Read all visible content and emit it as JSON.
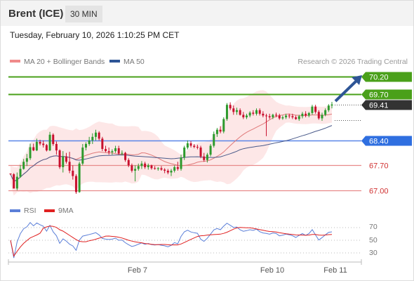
{
  "header": {
    "instrument": "Brent (ICE)",
    "timeframe": "30 MIN"
  },
  "datetime": "Tuesday, February 10, 2026 1:10:25 PM CET",
  "legend": {
    "bollinger": {
      "label": "MA 20 + Bollinger Bands",
      "color": "#f08a8a"
    },
    "ma50": {
      "label": "MA 50",
      "color": "#2e5596"
    },
    "copyright": "Research © 2026 Trading Central"
  },
  "price_levels": [
    {
      "value": "70.20",
      "kind": "target",
      "bg": "#4aa01a",
      "line": "#4aa01a"
    },
    {
      "value": "69.70",
      "kind": "resistance",
      "bg": "#4aa01a",
      "line": "#4aa01a"
    },
    {
      "value": "69.41",
      "kind": "last",
      "bg": "#333333",
      "line": "dotted"
    },
    {
      "value": "68.40",
      "kind": "pivot",
      "bg": "#2f6fe0",
      "line": "#5a86e8"
    },
    {
      "value": "67.70",
      "kind": "support",
      "bg": "none",
      "line": "#e88a8a"
    },
    {
      "value": "67.00",
      "kind": "support",
      "bg": "none",
      "line": "#e88a8a"
    }
  ],
  "rsi_legend": {
    "rsi": {
      "label": "RSI",
      "color": "#5b7fd8"
    },
    "ma": {
      "label": "9MA",
      "color": "#e02020"
    }
  },
  "rsi_levels": [
    "70",
    "50",
    "30"
  ],
  "x_labels": [
    "Feb 7",
    "Feb 10",
    "Feb 11"
  ],
  "chart_data": {
    "type": "candlestick",
    "title": "Brent (ICE) 30 MIN",
    "ylim": [
      66.8,
      70.45
    ],
    "colors": {
      "up": "#2d9a2d",
      "down": "#c8102e",
      "bands": "#fde3e3"
    },
    "candles": [
      [
        67.47,
        67.47,
        67.43,
        67.45
      ],
      [
        67.45,
        67.48,
        67.05,
        67.05
      ],
      [
        67.05,
        67.5,
        67.0,
        67.38
      ],
      [
        67.38,
        67.71,
        67.35,
        67.6
      ],
      [
        67.6,
        67.88,
        67.58,
        67.8
      ],
      [
        67.8,
        68.02,
        67.68,
        67.9
      ],
      [
        67.9,
        68.31,
        67.85,
        68.21
      ],
      [
        68.21,
        68.31,
        68.1,
        68.12
      ],
      [
        68.12,
        68.45,
        68.1,
        68.36
      ],
      [
        68.36,
        68.42,
        68.26,
        68.31
      ],
      [
        68.31,
        68.4,
        68.2,
        68.27
      ],
      [
        68.27,
        68.3,
        68.09,
        68.12
      ],
      [
        68.12,
        68.64,
        68.1,
        68.56
      ],
      [
        68.56,
        68.6,
        68.25,
        68.3
      ],
      [
        68.3,
        68.37,
        68.0,
        68.12
      ],
      [
        68.12,
        68.15,
        67.6,
        67.65
      ],
      [
        67.65,
        68.1,
        67.5,
        67.95
      ],
      [
        67.95,
        68.05,
        67.75,
        67.8
      ],
      [
        67.8,
        68.08,
        67.48,
        67.55
      ],
      [
        67.55,
        67.7,
        67.3,
        67.4
      ],
      [
        67.4,
        67.45,
        66.9,
        66.95
      ],
      [
        66.95,
        67.8,
        66.93,
        67.75
      ],
      [
        67.75,
        68.3,
        67.7,
        68.2
      ],
      [
        68.2,
        68.35,
        68.12,
        68.3
      ],
      [
        68.3,
        68.5,
        68.25,
        68.4
      ],
      [
        68.4,
        68.6,
        68.3,
        68.5
      ],
      [
        68.5,
        68.7,
        68.4,
        68.62
      ],
      [
        68.62,
        68.66,
        68.4,
        68.45
      ],
      [
        68.45,
        68.5,
        68.1,
        68.16
      ],
      [
        68.16,
        68.25,
        68.07,
        68.1
      ],
      [
        68.1,
        68.2,
        68.0,
        68.07
      ],
      [
        68.07,
        68.15,
        68.0,
        68.1
      ],
      [
        68.1,
        68.25,
        68.05,
        68.18
      ],
      [
        68.18,
        68.25,
        68.0,
        68.03
      ],
      [
        68.03,
        68.12,
        67.98,
        68.05
      ],
      [
        68.05,
        68.08,
        67.8,
        67.85
      ],
      [
        67.85,
        67.9,
        67.65,
        67.7
      ],
      [
        67.7,
        67.75,
        67.5,
        67.55
      ],
      [
        67.55,
        67.7,
        67.25,
        67.6
      ],
      [
        67.6,
        67.75,
        67.55,
        67.68
      ],
      [
        67.68,
        67.82,
        67.6,
        67.75
      ],
      [
        67.75,
        67.8,
        67.6,
        67.65
      ],
      [
        67.65,
        67.75,
        67.58,
        67.7
      ],
      [
        67.7,
        67.72,
        67.58,
        67.62
      ],
      [
        67.62,
        67.68,
        67.58,
        67.6
      ],
      [
        67.6,
        67.65,
        67.55,
        67.62
      ],
      [
        67.62,
        67.68,
        67.55,
        67.58
      ],
      [
        67.58,
        67.62,
        67.48,
        67.55
      ],
      [
        67.55,
        67.6,
        67.45,
        67.5
      ],
      [
        67.5,
        67.6,
        67.4,
        67.55
      ],
      [
        67.55,
        67.7,
        67.5,
        67.65
      ],
      [
        67.65,
        67.8,
        67.55,
        67.6
      ],
      [
        67.6,
        68.0,
        67.55,
        67.92
      ],
      [
        67.92,
        68.25,
        67.85,
        68.2
      ],
      [
        68.2,
        68.4,
        68.15,
        68.32
      ],
      [
        68.32,
        68.38,
        68.2,
        68.25
      ],
      [
        68.25,
        68.3,
        68.18,
        68.22
      ],
      [
        68.22,
        68.28,
        68.15,
        68.2
      ],
      [
        68.2,
        68.25,
        67.9,
        67.95
      ],
      [
        67.95,
        68.05,
        67.8,
        67.85
      ],
      [
        67.85,
        68.05,
        67.78,
        68.0
      ],
      [
        68.0,
        68.3,
        67.95,
        68.25
      ],
      [
        68.25,
        68.65,
        68.2,
        68.58
      ],
      [
        68.58,
        68.75,
        68.5,
        68.7
      ],
      [
        68.7,
        68.8,
        68.6,
        68.65
      ],
      [
        68.65,
        69.05,
        68.6,
        69.0
      ],
      [
        69.0,
        69.45,
        68.95,
        69.4
      ],
      [
        69.4,
        69.47,
        69.25,
        69.3
      ],
      [
        69.3,
        69.38,
        69.12,
        69.2
      ],
      [
        69.2,
        69.32,
        69.12,
        69.25
      ],
      [
        69.25,
        69.3,
        69.1,
        69.12
      ],
      [
        69.12,
        69.2,
        69.0,
        69.05
      ],
      [
        69.05,
        69.15,
        69.0,
        69.1
      ],
      [
        69.1,
        69.22,
        69.05,
        69.18
      ],
      [
        69.18,
        69.25,
        69.1,
        69.15
      ],
      [
        69.15,
        69.3,
        69.1,
        69.25
      ],
      [
        69.25,
        69.3,
        69.1,
        69.15
      ],
      [
        69.15,
        69.22,
        69.05,
        69.1
      ],
      [
        69.1,
        69.15,
        68.52,
        69.08
      ],
      [
        69.08,
        69.15,
        69.0,
        69.05
      ],
      [
        69.05,
        69.15,
        69.0,
        69.12
      ],
      [
        69.12,
        69.18,
        69.05,
        69.1
      ],
      [
        69.1,
        69.15,
        68.98,
        69.02
      ],
      [
        69.02,
        69.1,
        68.98,
        69.05
      ],
      [
        69.05,
        69.15,
        69.0,
        69.1
      ],
      [
        69.1,
        69.15,
        69.02,
        69.08
      ],
      [
        69.08,
        69.15,
        69.0,
        69.05
      ],
      [
        69.05,
        69.1,
        68.98,
        69.0
      ],
      [
        69.0,
        69.12,
        68.95,
        69.08
      ],
      [
        69.08,
        69.2,
        69.02,
        69.15
      ],
      [
        69.15,
        69.22,
        69.05,
        69.1
      ],
      [
        69.1,
        69.2,
        69.05,
        69.17
      ],
      [
        69.17,
        69.4,
        69.12,
        69.35
      ],
      [
        69.35,
        69.4,
        69.15,
        69.2
      ],
      [
        69.2,
        69.25,
        68.98,
        69.02
      ],
      [
        69.02,
        69.18,
        68.95,
        69.12
      ],
      [
        69.12,
        69.3,
        69.08,
        69.25
      ],
      [
        69.25,
        69.42,
        69.2,
        69.38
      ],
      [
        69.38,
        69.48,
        69.3,
        69.41
      ]
    ],
    "x_ticks": [
      "Feb 7",
      "Feb 10",
      "Feb 11"
    ],
    "levels": [
      70.2,
      69.7,
      69.41,
      68.4,
      67.7,
      67.0
    ],
    "rsi": {
      "ylim": [
        20,
        80
      ],
      "levels": [
        70,
        50,
        30
      ]
    }
  }
}
